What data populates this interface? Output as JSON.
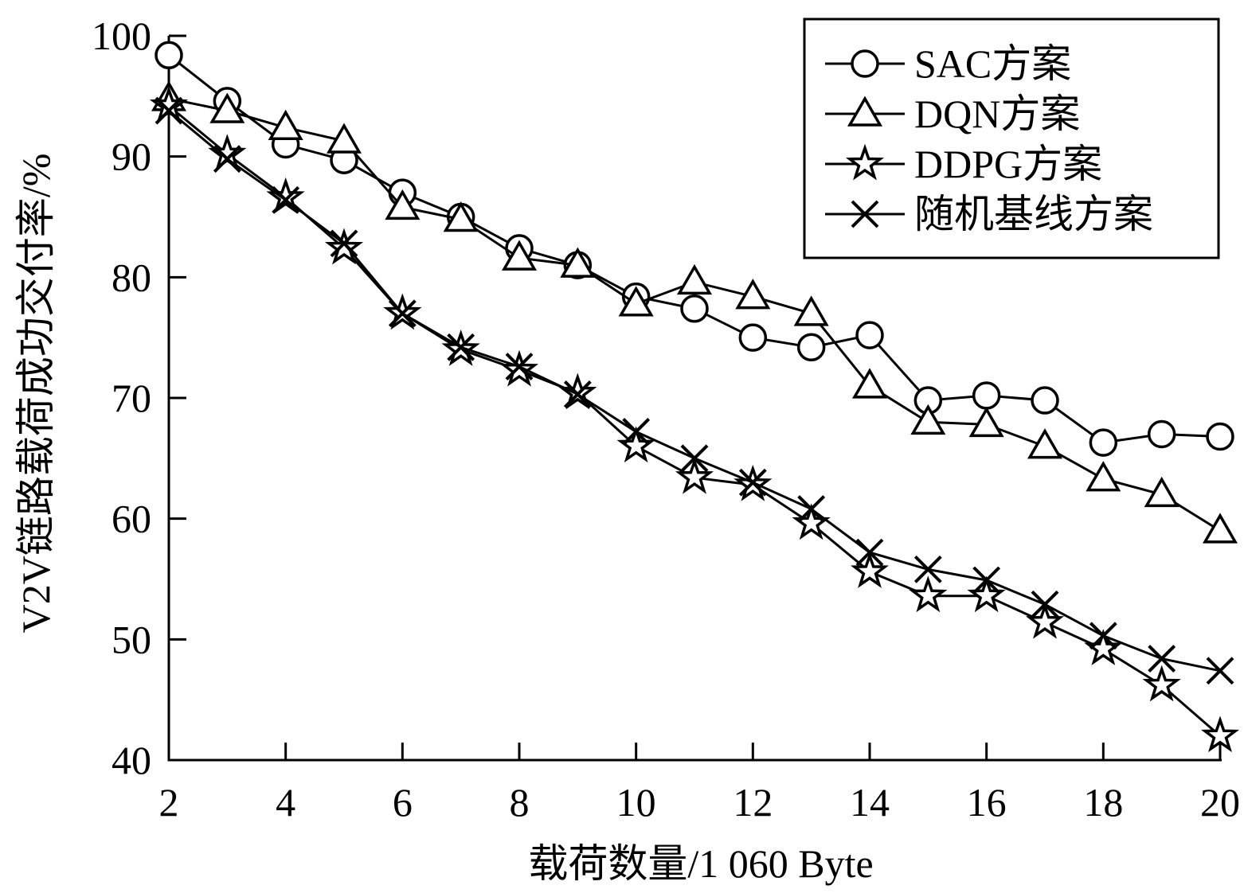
{
  "chart_data": {
    "type": "line",
    "title": "",
    "xlabel": "载荷数量/1 060 Byte",
    "ylabel": "V2V链路载荷成功交付率/%",
    "xlim": [
      2,
      20
    ],
    "ylim": [
      40,
      100
    ],
    "xticks": [
      "2",
      "4",
      "6",
      "8",
      "10",
      "12",
      "14",
      "16",
      "18",
      "20"
    ],
    "yticks": [
      "40",
      "50",
      "60",
      "70",
      "80",
      "90",
      "100"
    ],
    "grid": false,
    "legend_position": "top-right",
    "x": [
      2,
      3,
      4,
      5,
      6,
      7,
      8,
      9,
      10,
      11,
      12,
      13,
      14,
      15,
      16,
      17,
      18,
      19,
      20
    ],
    "series": [
      {
        "name": "SAC方案",
        "marker": "circle",
        "values": [
          98.4,
          94.6,
          91.0,
          89.7,
          87.0,
          85.0,
          82.4,
          81.0,
          78.4,
          77.4,
          75.0,
          74.2,
          75.2,
          69.8,
          70.2,
          69.8,
          66.3,
          67.0,
          66.8
        ]
      },
      {
        "name": "DQN方案",
        "marker": "triangle",
        "values": [
          94.8,
          93.8,
          92.4,
          91.3,
          85.8,
          84.8,
          81.6,
          81.0,
          77.8,
          79.6,
          78.4,
          77.0,
          71.0,
          68.0,
          67.8,
          66.0,
          63.3,
          62.0,
          59.0
        ]
      },
      {
        "name": "DDPG方案",
        "marker": "star",
        "values": [
          94.2,
          90.2,
          86.6,
          82.4,
          77.0,
          74.0,
          72.3,
          70.4,
          66.0,
          63.4,
          62.8,
          59.6,
          55.6,
          53.6,
          53.6,
          51.4,
          49.2,
          46.2,
          42.0
        ]
      },
      {
        "name": "随机基线方案",
        "marker": "x",
        "values": [
          93.8,
          89.8,
          86.4,
          82.8,
          77.0,
          74.2,
          72.6,
          70.3,
          67.2,
          65.0,
          63.0,
          60.8,
          57.2,
          55.8,
          54.9,
          52.9,
          50.3,
          48.4,
          47.4
        ]
      }
    ]
  }
}
